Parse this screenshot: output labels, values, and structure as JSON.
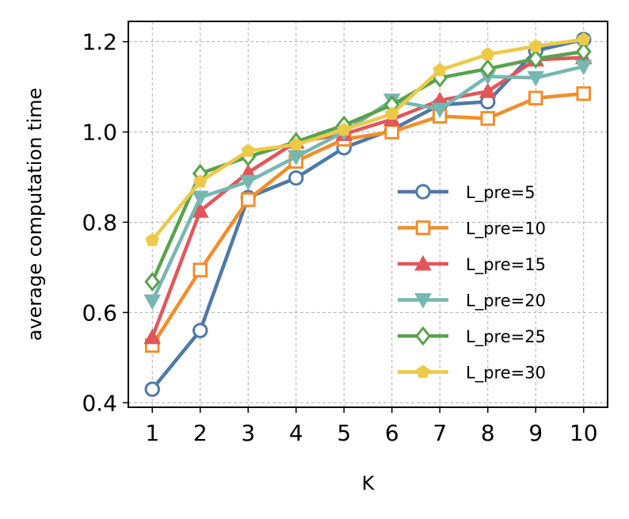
{
  "chart_data": {
    "type": "line",
    "xlabel": "K",
    "ylabel": "average computation time",
    "xlim": [
      0.5,
      10.5
    ],
    "ylim": [
      0.39,
      1.245
    ],
    "xticks": [
      1,
      2,
      3,
      4,
      5,
      6,
      7,
      8,
      9,
      10
    ],
    "yticks": [
      0.4,
      0.6,
      0.8,
      1.0,
      1.2
    ],
    "ytick_labels": [
      "0.4",
      "0.6",
      "0.8",
      "1.0",
      "1.2"
    ],
    "grid": true,
    "legend_position": "lower-right",
    "x": [
      1,
      2,
      3,
      4,
      5,
      6,
      7,
      8,
      9,
      10
    ],
    "series": [
      {
        "name": "L_pre=5",
        "color": "#4e79a7",
        "marker": "circle",
        "values": [
          0.43,
          0.56,
          0.855,
          0.898,
          0.965,
          1.005,
          1.06,
          1.067,
          1.18,
          1.205
        ]
      },
      {
        "name": "L_pre=10",
        "color": "#f28e2b",
        "marker": "square",
        "values": [
          0.527,
          0.694,
          0.85,
          0.935,
          0.984,
          1.0,
          1.035,
          1.03,
          1.075,
          1.085
        ]
      },
      {
        "name": "L_pre=15",
        "color": "#e15759",
        "marker": "triangle-up",
        "values": [
          0.545,
          0.825,
          0.91,
          0.978,
          0.995,
          1.028,
          1.07,
          1.09,
          1.16,
          1.165
        ]
      },
      {
        "name": "L_pre=20",
        "color": "#76b7b2",
        "marker": "triangle-down",
        "values": [
          0.625,
          0.855,
          0.89,
          0.945,
          1.0,
          1.07,
          1.05,
          1.123,
          1.12,
          1.145
        ]
      },
      {
        "name": "L_pre=25",
        "color": "#59a14f",
        "marker": "diamond",
        "values": [
          0.668,
          0.908,
          0.945,
          0.978,
          1.015,
          1.06,
          1.12,
          1.14,
          1.162,
          1.178
        ]
      },
      {
        "name": "L_pre=30",
        "color": "#edc948",
        "marker": "pentagon",
        "values": [
          0.76,
          0.89,
          0.958,
          0.972,
          1.005,
          1.04,
          1.137,
          1.172,
          1.19,
          1.205
        ]
      }
    ]
  }
}
